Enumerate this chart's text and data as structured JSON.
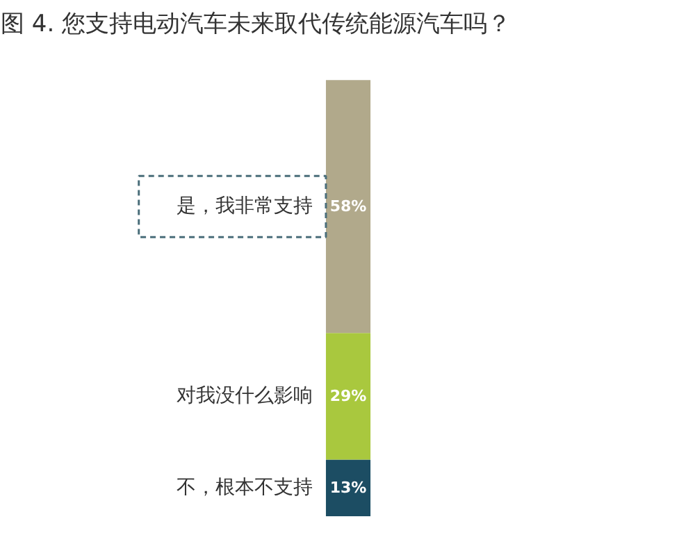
{
  "chart_data": {
    "type": "bar",
    "title": "图 4. 您支持电动汽车未来取代传统能源汽车吗？",
    "stacked": true,
    "categories": [
      null
    ],
    "legend": false,
    "grid": false,
    "series": [
      {
        "name": "不，根本不支持",
        "color": "#1c4d63",
        "values": [
          13
        ],
        "value_labels": [
          "13%"
        ]
      },
      {
        "name": "对我没什么影响",
        "color": "#a9c83e",
        "values": [
          29
        ],
        "value_labels": [
          "29%"
        ]
      },
      {
        "name": "是，我非常支持",
        "color": "#b1a98b",
        "values": [
          58
        ],
        "value_labels": [
          "58%"
        ]
      }
    ]
  }
}
